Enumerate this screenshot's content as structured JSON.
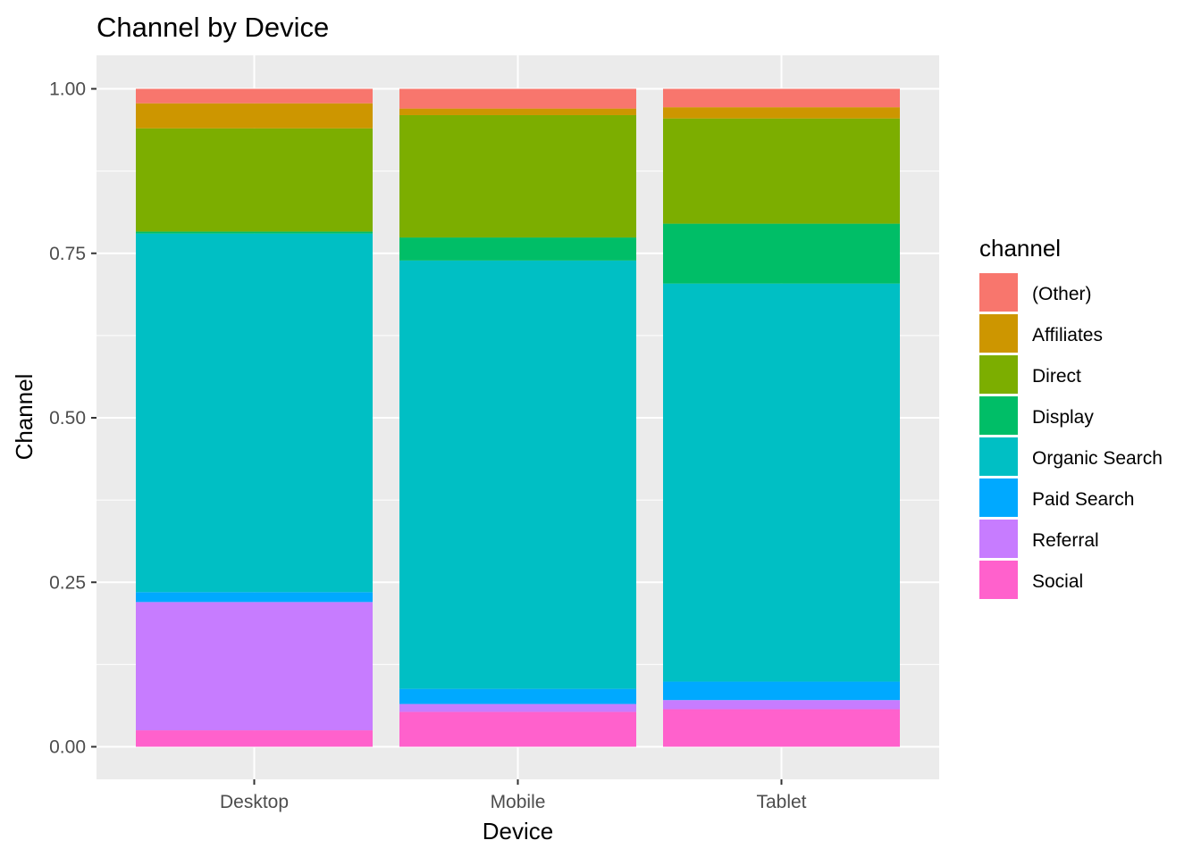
{
  "chart_data": {
    "type": "bar",
    "stacked": "fill",
    "title": "Channel by Device",
    "xlabel": "Device",
    "ylabel": "Channel",
    "categories": [
      "Desktop",
      "Mobile",
      "Tablet"
    ],
    "ylim": [
      0,
      1
    ],
    "yticks": [
      0,
      0.25,
      0.5,
      0.75,
      1
    ],
    "ytick_labels": [
      "0.00",
      "0.25",
      "0.50",
      "0.75",
      "1.00"
    ],
    "grid": true,
    "legend": {
      "title": "channel",
      "placement": "right"
    },
    "series": [
      {
        "name": "(Other)",
        "color": "#F8766D",
        "values": [
          0.022,
          0.03,
          0.028
        ]
      },
      {
        "name": "Affiliates",
        "color": "#CD9600",
        "values": [
          0.038,
          0.01,
          0.017
        ]
      },
      {
        "name": "Direct",
        "color": "#7CAE00",
        "values": [
          0.157,
          0.186,
          0.16
        ]
      },
      {
        "name": "Display",
        "color": "#00BE67",
        "values": [
          0.003,
          0.035,
          0.091
        ]
      },
      {
        "name": "Organic Search",
        "color": "#00BFC4",
        "values": [
          0.545,
          0.651,
          0.605
        ]
      },
      {
        "name": "Paid Search",
        "color": "#00A9FF",
        "values": [
          0.015,
          0.023,
          0.028
        ]
      },
      {
        "name": "Referral",
        "color": "#C77CFF",
        "values": [
          0.195,
          0.012,
          0.014
        ]
      },
      {
        "name": "Social",
        "color": "#FF61CC",
        "values": [
          0.025,
          0.053,
          0.057
        ]
      }
    ]
  }
}
